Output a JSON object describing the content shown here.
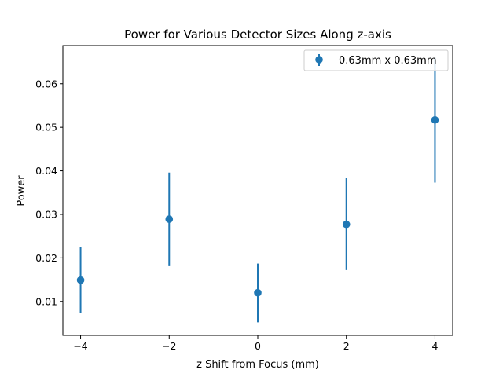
{
  "chart_data": {
    "type": "scatter",
    "title": "Power for Various Detector Sizes Along z-axis",
    "xlabel": "z Shift from Focus (mm)",
    "ylabel": "Power",
    "xlim": [
      -4.4,
      4.4
    ],
    "ylim": [
      0.0022,
      0.0688
    ],
    "xticks": [
      -4,
      -2,
      0,
      2,
      4
    ],
    "xtick_labels": [
      "−4",
      "−2",
      "0",
      "2",
      "4"
    ],
    "yticks": [
      0.01,
      0.02,
      0.03,
      0.04,
      0.05,
      0.06
    ],
    "ytick_labels": [
      "0.01",
      "0.02",
      "0.03",
      "0.04",
      "0.05",
      "0.06"
    ],
    "grid": false,
    "legend_position": "upper right",
    "series": [
      {
        "name": "0.63mm x 0.63mm",
        "color": "#1f77b4",
        "x": [
          -4,
          -2,
          0,
          2,
          4
        ],
        "y": [
          0.0149,
          0.0289,
          0.012,
          0.0277,
          0.0517
        ],
        "yerr_low": [
          0.0073,
          0.0181,
          0.0052,
          0.0172,
          0.0373
        ],
        "yerr_high": [
          0.0225,
          0.0396,
          0.0187,
          0.0383,
          0.066
        ]
      }
    ]
  }
}
